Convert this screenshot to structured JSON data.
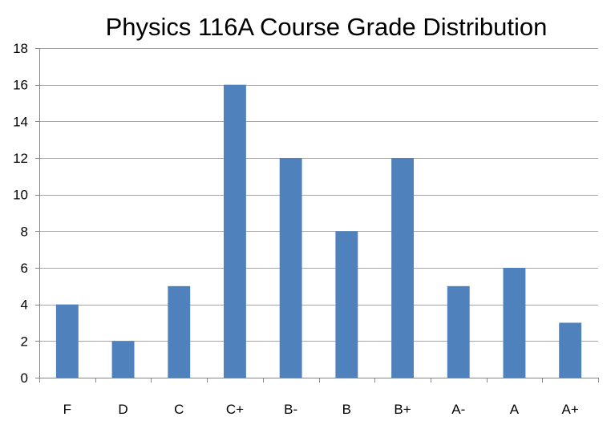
{
  "colors": {
    "bar": "#4F81BD",
    "grid": "#A6A6A6",
    "axis": "#868686",
    "text": "#000000",
    "background": "#FFFFFF"
  },
  "chart_data": {
    "type": "bar",
    "title": "Physics 116A Course Grade Distribution",
    "xlabel": "",
    "ylabel": "",
    "categories": [
      "F",
      "D",
      "C",
      "C+",
      "B-",
      "B",
      "B+",
      "A-",
      "A",
      "A+"
    ],
    "values": [
      4,
      2,
      5,
      16,
      12,
      8,
      12,
      5,
      6,
      3
    ],
    "ylim": [
      0,
      18
    ],
    "yticks": [
      "0",
      "2",
      "4",
      "6",
      "8",
      "10",
      "12",
      "14",
      "16",
      "18"
    ],
    "grid": true,
    "legend": "none"
  }
}
